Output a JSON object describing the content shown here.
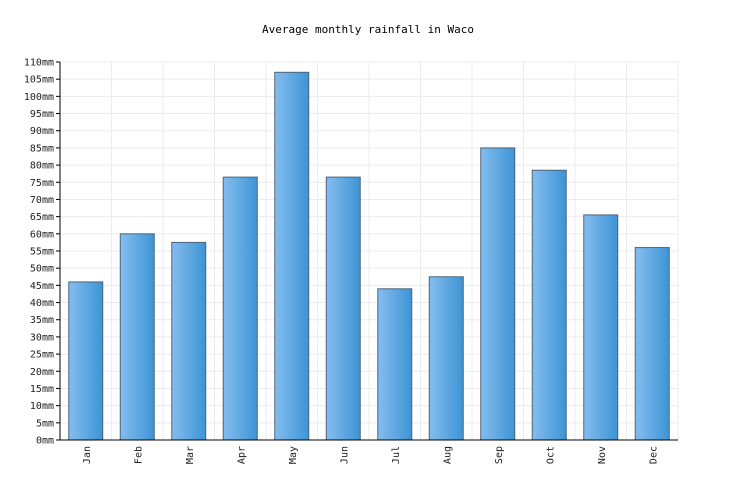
{
  "chart_data": {
    "type": "bar",
    "title": "Average monthly rainfall in Waco",
    "xlabel": "",
    "ylabel": "",
    "categories": [
      "Jan",
      "Feb",
      "Mar",
      "Apr",
      "May",
      "Jun",
      "Jul",
      "Aug",
      "Sep",
      "Oct",
      "Nov",
      "Dec"
    ],
    "values": [
      46,
      60,
      57.5,
      76.5,
      107,
      76.5,
      44,
      47.5,
      85,
      78.5,
      65.5,
      56
    ],
    "ylim": [
      0,
      110
    ],
    "ytick_step": 5,
    "ytick_suffix": "mm",
    "grid": true,
    "legend": "none",
    "colors": {
      "bar_left": "#85bdf0",
      "bar_right": "#3d94d4",
      "bar_stroke": "#4d6478",
      "grid": "#ececec",
      "axis": "#000000"
    }
  }
}
